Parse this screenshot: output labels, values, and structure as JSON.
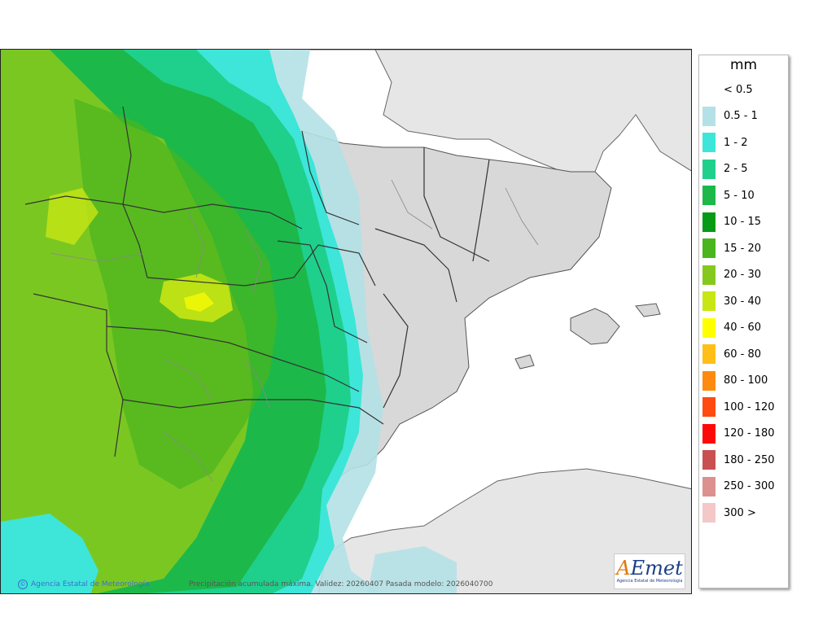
{
  "legend": {
    "unit": "mm",
    "items": [
      {
        "label": "< 0.5",
        "color": "#ffffff"
      },
      {
        "label": "0.5 - 1",
        "color": "#b4e1e6"
      },
      {
        "label": "1 - 2",
        "color": "#3de6d8"
      },
      {
        "label": "2 - 5",
        "color": "#1ed08c"
      },
      {
        "label": "5 - 10",
        "color": "#1db84a"
      },
      {
        "label": "10 - 15",
        "color": "#079a14"
      },
      {
        "label": "15 - 20",
        "color": "#4ab51e"
      },
      {
        "label": "20 - 30",
        "color": "#86c91e"
      },
      {
        "label": "30 - 40",
        "color": "#c8e614"
      },
      {
        "label": "40 - 60",
        "color": "#ffff00"
      },
      {
        "label": "60 - 80",
        "color": "#ffbf18"
      },
      {
        "label": "80 - 100",
        "color": "#ff8a10"
      },
      {
        "label": "100 - 120",
        "color": "#ff4a10"
      },
      {
        "label": "120 - 180",
        "color": "#ff0808"
      },
      {
        "label": "180 - 250",
        "color": "#c85050"
      },
      {
        "label": "250 - 300",
        "color": "#dc9090"
      },
      {
        "label": "300 >",
        "color": "#f4c8c8"
      }
    ]
  },
  "footer": {
    "credit": "Agencia Estatal de Meteorología",
    "caption": "Precipitación acumulada máxima. Validez: 20260407 Pasada modelo: 2026040700"
  },
  "logo": {
    "text_a": "A",
    "text_rest": "Emet",
    "subtitle": "Agencia Estatal de Meteorología"
  }
}
